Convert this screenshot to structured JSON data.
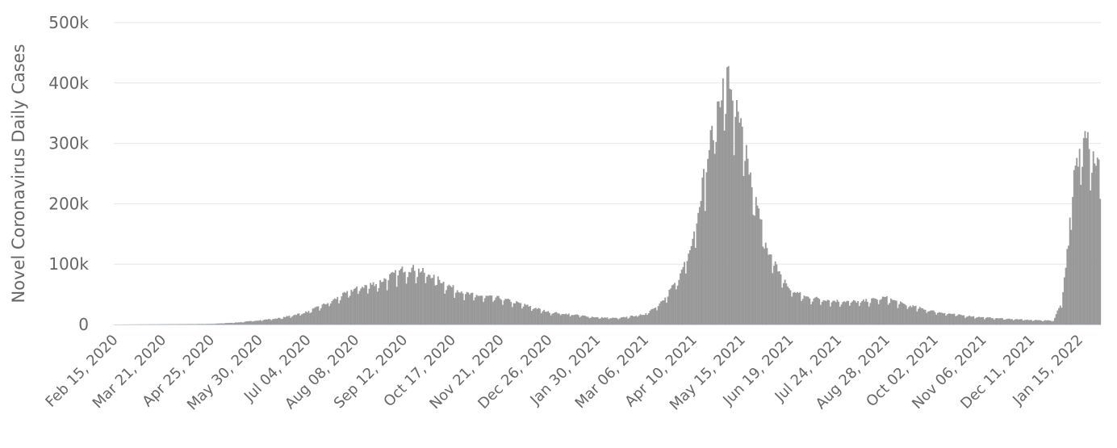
{
  "chart_data": {
    "type": "bar",
    "title": "",
    "xlabel": "",
    "ylabel": "Novel Coronavirus Daily Cases",
    "ylim": [
      0,
      500000
    ],
    "yticks": [
      {
        "value": 0,
        "label": "0"
      },
      {
        "value": 100000,
        "label": "100k"
      },
      {
        "value": 200000,
        "label": "200k"
      },
      {
        "value": 300000,
        "label": "300k"
      },
      {
        "value": 400000,
        "label": "400k"
      },
      {
        "value": 500000,
        "label": "500k"
      }
    ],
    "xticks": [
      "Feb 15, 2020",
      "Mar 21, 2020",
      "Apr 25, 2020",
      "May 30, 2020",
      "Jul 04, 2020",
      "Aug 08, 2020",
      "Sep 12, 2020",
      "Oct 17, 2020",
      "Nov 21, 2020",
      "Dec 26, 2020",
      "Jan 30, 2021",
      "Mar 06, 2021",
      "Apr 10, 2021",
      "May 15, 2021",
      "Jun 19, 2021",
      "Jul 24, 2021",
      "Aug 28, 2021",
      "Oct 02, 2021",
      "Nov 06, 2021",
      "Dec 11, 2021",
      "Jan 15, 2022"
    ],
    "x_start": "Feb 15, 2020",
    "x_end": "Jan 31, 2022",
    "grid": true,
    "legend": "none",
    "bar_color": "#999999",
    "grid_color": "#e6e6e6",
    "axis_color": "#ccd6eb",
    "keypoints": [
      [
        "Feb 15, 2020",
        0
      ],
      [
        "Apr 25, 2020",
        1000
      ],
      [
        "May 15, 2020",
        3500
      ],
      [
        "May 30, 2020",
        7000
      ],
      [
        "Jun 15, 2020",
        11000
      ],
      [
        "Jul 04, 2020",
        21000
      ],
      [
        "Jul 20, 2020",
        37000
      ],
      [
        "Aug 08, 2020",
        60000
      ],
      [
        "Aug 25, 2020",
        70000
      ],
      [
        "Sep 12, 2020",
        92000
      ],
      [
        "Sep 20, 2020",
        93000
      ],
      [
        "Oct 01, 2020",
        83000
      ],
      [
        "Oct 17, 2020",
        62000
      ],
      [
        "Oct 30, 2020",
        50000
      ],
      [
        "Nov 21, 2020",
        44000
      ],
      [
        "Dec 10, 2020",
        32000
      ],
      [
        "Dec 26, 2020",
        21000
      ],
      [
        "Jan 15, 2021",
        16000
      ],
      [
        "Jan 30, 2021",
        12000
      ],
      [
        "Feb 15, 2021",
        10500
      ],
      [
        "Mar 06, 2021",
        17000
      ],
      [
        "Mar 20, 2021",
        40000
      ],
      [
        "Apr 01, 2021",
        82000
      ],
      [
        "Apr 10, 2021",
        145000
      ],
      [
        "Apr 20, 2021",
        270000
      ],
      [
        "Apr 30, 2021",
        385000
      ],
      [
        "May 06, 2021",
        410000
      ],
      [
        "May 15, 2021",
        325000
      ],
      [
        "May 25, 2021",
        210000
      ],
      [
        "Jun 05, 2021",
        115000
      ],
      [
        "Jun 19, 2021",
        60000
      ],
      [
        "Jul 01, 2021",
        46000
      ],
      [
        "Jul 24, 2021",
        39000
      ],
      [
        "Aug 10, 2021",
        38000
      ],
      [
        "Aug 28, 2021",
        45000
      ],
      [
        "Sep 10, 2021",
        34000
      ],
      [
        "Oct 02, 2021",
        22000
      ],
      [
        "Oct 20, 2021",
        16000
      ],
      [
        "Nov 06, 2021",
        12000
      ],
      [
        "Nov 25, 2021",
        9500
      ],
      [
        "Dec 11, 2021",
        7500
      ],
      [
        "Dec 28, 2021",
        6500
      ],
      [
        "Jan 03, 2022",
        38000
      ],
      [
        "Jan 08, 2022",
        140000
      ],
      [
        "Jan 12, 2022",
        250000
      ],
      [
        "Jan 15, 2022",
        270000
      ],
      [
        "Jan 20, 2022",
        340000
      ],
      [
        "Jan 25, 2022",
        285000
      ],
      [
        "Jan 31, 2022",
        260000
      ]
    ]
  }
}
